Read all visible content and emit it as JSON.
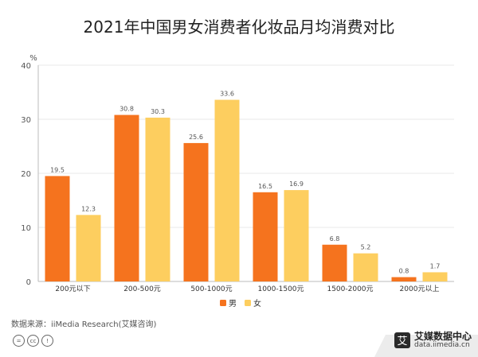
{
  "title": "2021年中国男女消费者化妆品月均消费对比",
  "source": "数据来源：iiMedia Research(艾媒咨询)",
  "brand": {
    "name": "艾媒数据中心",
    "url": "data.iimedia.cn",
    "logo_char": "艾"
  },
  "license_icons": [
    "=",
    "cc",
    "!"
  ],
  "colors": {
    "male": "#F5731E",
    "female": "#FDCE5F",
    "grid": "#e9e9e9",
    "axis": "#bbbbbb",
    "label": "#555555"
  },
  "chart_data": {
    "type": "bar",
    "title": "2021年中国男女消费者化妆品月均消费对比",
    "xlabel": "",
    "ylabel": "%",
    "ylim": [
      0,
      40
    ],
    "yticks": [
      0,
      10,
      20,
      30,
      40
    ],
    "grid": true,
    "legend_position": "bottom-center",
    "categories": [
      "200元以下",
      "200-500元",
      "500-1000元",
      "1000-1500元",
      "1500-2000元",
      "2000元以上"
    ],
    "series": [
      {
        "name": "男",
        "values": [
          19.5,
          30.8,
          25.6,
          16.5,
          6.8,
          0.8
        ]
      },
      {
        "name": "女",
        "values": [
          12.3,
          30.3,
          33.6,
          16.9,
          5.2,
          1.7
        ]
      }
    ]
  }
}
